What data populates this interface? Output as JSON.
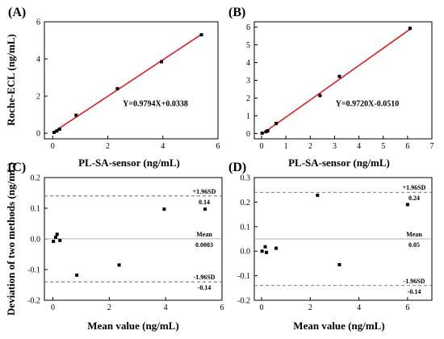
{
  "chart_data": [
    {
      "panel": "(A)",
      "type": "scatter",
      "xlabel": "PL-SA-sensor (ng/mL)",
      "ylabel": "Roche-ECL (ng/mL)",
      "xlim": [
        -0.3,
        6
      ],
      "ylim": [
        -0.3,
        6
      ],
      "xticks": [
        0,
        2,
        4,
        6
      ],
      "yticks": [
        0,
        2,
        4,
        6
      ],
      "points": [
        [
          0.05,
          0.05
        ],
        [
          0.15,
          0.12
        ],
        [
          0.25,
          0.22
        ],
        [
          0.85,
          0.97
        ],
        [
          2.35,
          2.4
        ],
        [
          3.95,
          3.85
        ],
        [
          5.4,
          5.3
        ]
      ],
      "fit": {
        "equation": "Y=0.9794X+0.0338",
        "slope": 0.9794,
        "intercept": 0.0338,
        "xrange": [
          0,
          5.45
        ],
        "color": "#dd1f1f"
      }
    },
    {
      "panel": "(B)",
      "type": "scatter",
      "xlabel": "PL-SA-sensor (ng/mL)",
      "ylabel": "",
      "xlim": [
        -0.3,
        7
      ],
      "ylim": [
        -0.3,
        6.3
      ],
      "xticks": [
        0,
        1,
        2,
        3,
        4,
        5,
        6,
        7
      ],
      "yticks": [
        0,
        1,
        2,
        3,
        4,
        5,
        6
      ],
      "points": [
        [
          0.02,
          0.02
        ],
        [
          0.18,
          0.1
        ],
        [
          0.25,
          0.15
        ],
        [
          0.6,
          0.57
        ],
        [
          2.4,
          2.14
        ],
        [
          3.2,
          3.22
        ],
        [
          6.1,
          5.93
        ]
      ],
      "fit": {
        "equation": "Y=0.9720X-0.0510",
        "slope": 0.972,
        "intercept": -0.051,
        "xrange": [
          0,
          6.15
        ],
        "color": "#dd1f1f"
      }
    },
    {
      "panel": "(C)",
      "type": "scatter",
      "xlabel": "Mean value (ng/mL)",
      "ylabel": "Deviation of two methods (ng/mL)",
      "xlim": [
        -0.3,
        6
      ],
      "ylim": [
        -0.2,
        0.2
      ],
      "xticks": [
        0,
        2,
        4,
        6
      ],
      "yticks": [
        -0.2,
        -0.1,
        0.0,
        0.1,
        0.2
      ],
      "yticklabels": [
        "-0.2",
        "-0.1",
        "0.0",
        "0.1",
        "0.2"
      ],
      "points": [
        [
          0.02,
          -0.008
        ],
        [
          0.1,
          0.005
        ],
        [
          0.15,
          0.015
        ],
        [
          0.25,
          -0.005
        ],
        [
          0.85,
          -0.118
        ],
        [
          2.35,
          -0.085
        ],
        [
          3.95,
          0.097
        ],
        [
          5.4,
          0.097
        ]
      ],
      "lines": [
        {
          "label": "+1.96SD",
          "value_label": "0.14",
          "y": 0.14,
          "style": "dashed"
        },
        {
          "label": "Mean",
          "value_label": "0.0003",
          "y": 0.0003,
          "style": "solid"
        },
        {
          "label": "-1.96SD",
          "value_label": "-0.14",
          "y": -0.14,
          "style": "dashed"
        }
      ]
    },
    {
      "panel": "(D)",
      "type": "scatter",
      "xlabel": "Mean value (ng/mL)",
      "ylabel": "",
      "xlim": [
        -0.3,
        7
      ],
      "ylim": [
        -0.2,
        0.3
      ],
      "xticks": [
        0,
        2,
        4,
        6
      ],
      "yticks": [
        -0.2,
        -0.1,
        0.0,
        0.1,
        0.2,
        0.3
      ],
      "yticklabels": [
        "-0.2",
        "-0.1",
        "0.0",
        "0.1",
        "0.2",
        "0.3"
      ],
      "points": [
        [
          0.02,
          0.0
        ],
        [
          0.15,
          0.018
        ],
        [
          0.2,
          -0.005
        ],
        [
          0.6,
          0.012
        ],
        [
          2.3,
          0.228
        ],
        [
          3.2,
          -0.055
        ],
        [
          6.0,
          0.19
        ]
      ],
      "lines": [
        {
          "label": "+1.96SD",
          "value_label": "0.24",
          "y": 0.24,
          "style": "dashed"
        },
        {
          "label": "Mean",
          "value_label": "0.05",
          "y": 0.05,
          "style": "solid"
        },
        {
          "label": "-1.96SD",
          "value_label": "-0.14",
          "y": -0.14,
          "style": "dashed"
        }
      ]
    }
  ]
}
